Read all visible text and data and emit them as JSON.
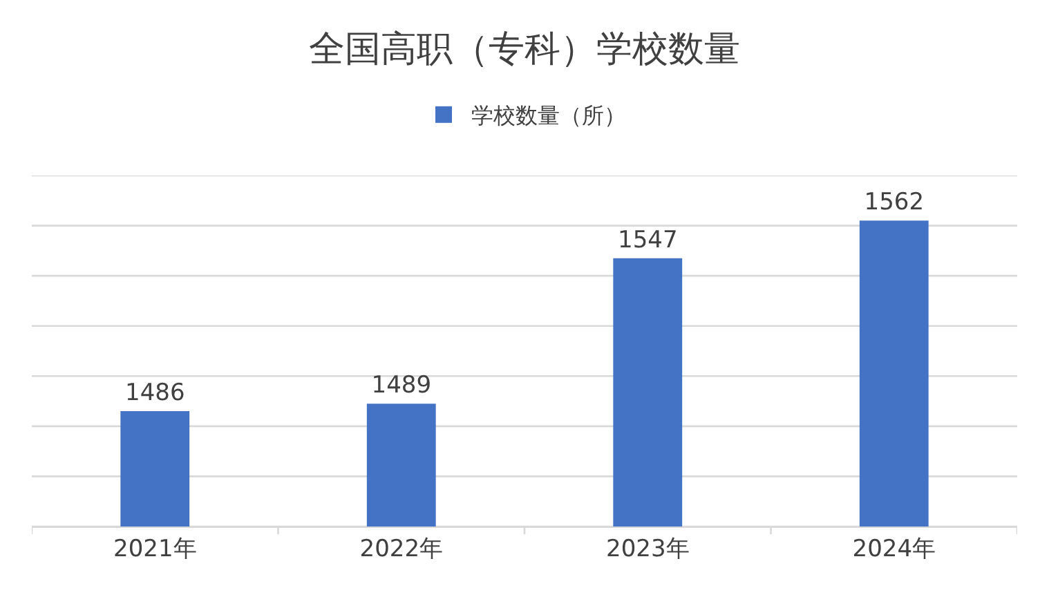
{
  "chart_data": {
    "type": "bar",
    "title": "全国高职（专科）学校数量",
    "categories": [
      "2021年",
      "2022年",
      "2023年",
      "2024年"
    ],
    "series": [
      {
        "name": "学校数量（所）",
        "color": "#4472c4",
        "values": [
          1486,
          1489,
          1547,
          1562
        ]
      }
    ],
    "ylim": [
      1440,
      1580
    ],
    "yticks": [
      {
        "value": 1440,
        "label": null
      },
      {
        "value": 1460,
        "label": null
      },
      {
        "value": 1480,
        "label": null
      },
      {
        "value": 1500,
        "label": null
      },
      {
        "value": 1520,
        "label": null
      },
      {
        "value": 1540,
        "label": null
      },
      {
        "value": 1560,
        "label": null
      },
      {
        "value": 1580,
        "label": null
      }
    ],
    "tick_labels": "x",
    "grid": "y",
    "legend": "top",
    "data_labels": true
  }
}
